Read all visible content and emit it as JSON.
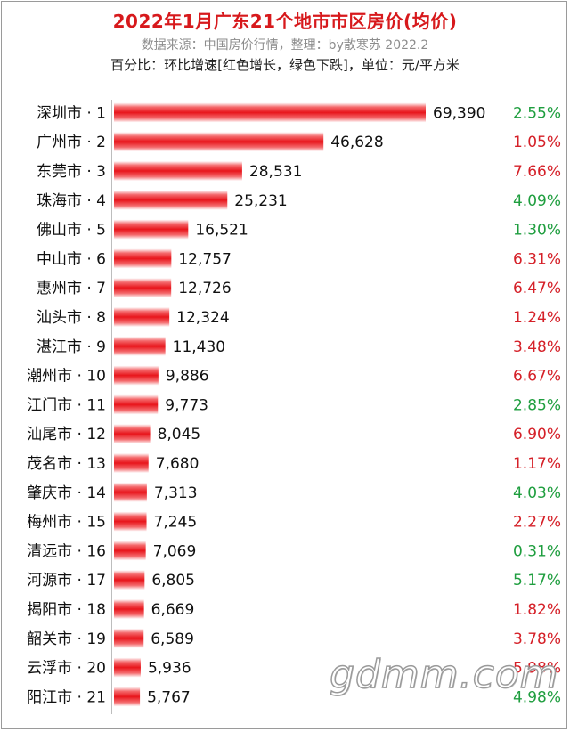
{
  "chart_data": {
    "type": "bar",
    "orientation": "horizontal",
    "title": "2022年1月广东21个地市市区房价(均价)",
    "source": "数据来源：中国房价行情，整理：by散寒苏 2022.2",
    "note": "百分比：环比增速[红色增长，绿色下跌]，单位：元/平方米",
    "categories": [
      "深圳市 · 1",
      "广州市 · 2",
      "东莞市 · 3",
      "珠海市 · 4",
      "佛山市 · 5",
      "中山市 · 6",
      "惠州市 · 7",
      "汕头市 · 8",
      "湛江市 · 9",
      "潮州市 · 10",
      "江门市 · 11",
      "汕尾市 · 12",
      "茂名市 · 13",
      "肇庆市 · 14",
      "梅州市 · 15",
      "清远市 · 16",
      "河源市 · 17",
      "揭阳市 · 18",
      "韶关市 · 19",
      "云浮市 · 20",
      "阳江市 · 21"
    ],
    "values": [
      69390,
      46628,
      28531,
      25231,
      16521,
      12757,
      12726,
      12324,
      11430,
      9886,
      9773,
      8045,
      7680,
      7313,
      7245,
      7069,
      6805,
      6669,
      6589,
      5936,
      5767
    ],
    "value_labels": [
      "69,390",
      "46,628",
      "28,531",
      "25,231",
      "16,521",
      "12,757",
      "12,726",
      "12,324",
      "11,430",
      "9,886",
      "9,773",
      "8,045",
      "7,680",
      "7,313",
      "7,245",
      "7,069",
      "6,805",
      "6,669",
      "6,589",
      "5,936",
      "5,767"
    ],
    "change_pct": [
      "2.55%",
      "1.05%",
      "7.66%",
      "4.09%",
      "1.30%",
      "6.31%",
      "6.47%",
      "1.24%",
      "3.48%",
      "6.67%",
      "2.85%",
      "6.90%",
      "1.17%",
      "4.03%",
      "2.27%",
      "0.31%",
      "5.17%",
      "1.82%",
      "3.78%",
      "5.98%",
      "4.98%"
    ],
    "change_direction": [
      "down",
      "up",
      "up",
      "down",
      "down",
      "up",
      "up",
      "up",
      "up",
      "up",
      "down",
      "up",
      "up",
      "down",
      "up",
      "down",
      "down",
      "up",
      "up",
      "up",
      "down"
    ],
    "colors": {
      "bar": "#e8151b",
      "up": "#d52028",
      "down": "#1f9e3f",
      "title": "#d7191c"
    },
    "xlim": [
      0,
      70000
    ],
    "grid": false
  },
  "watermark": "gdmm.com"
}
